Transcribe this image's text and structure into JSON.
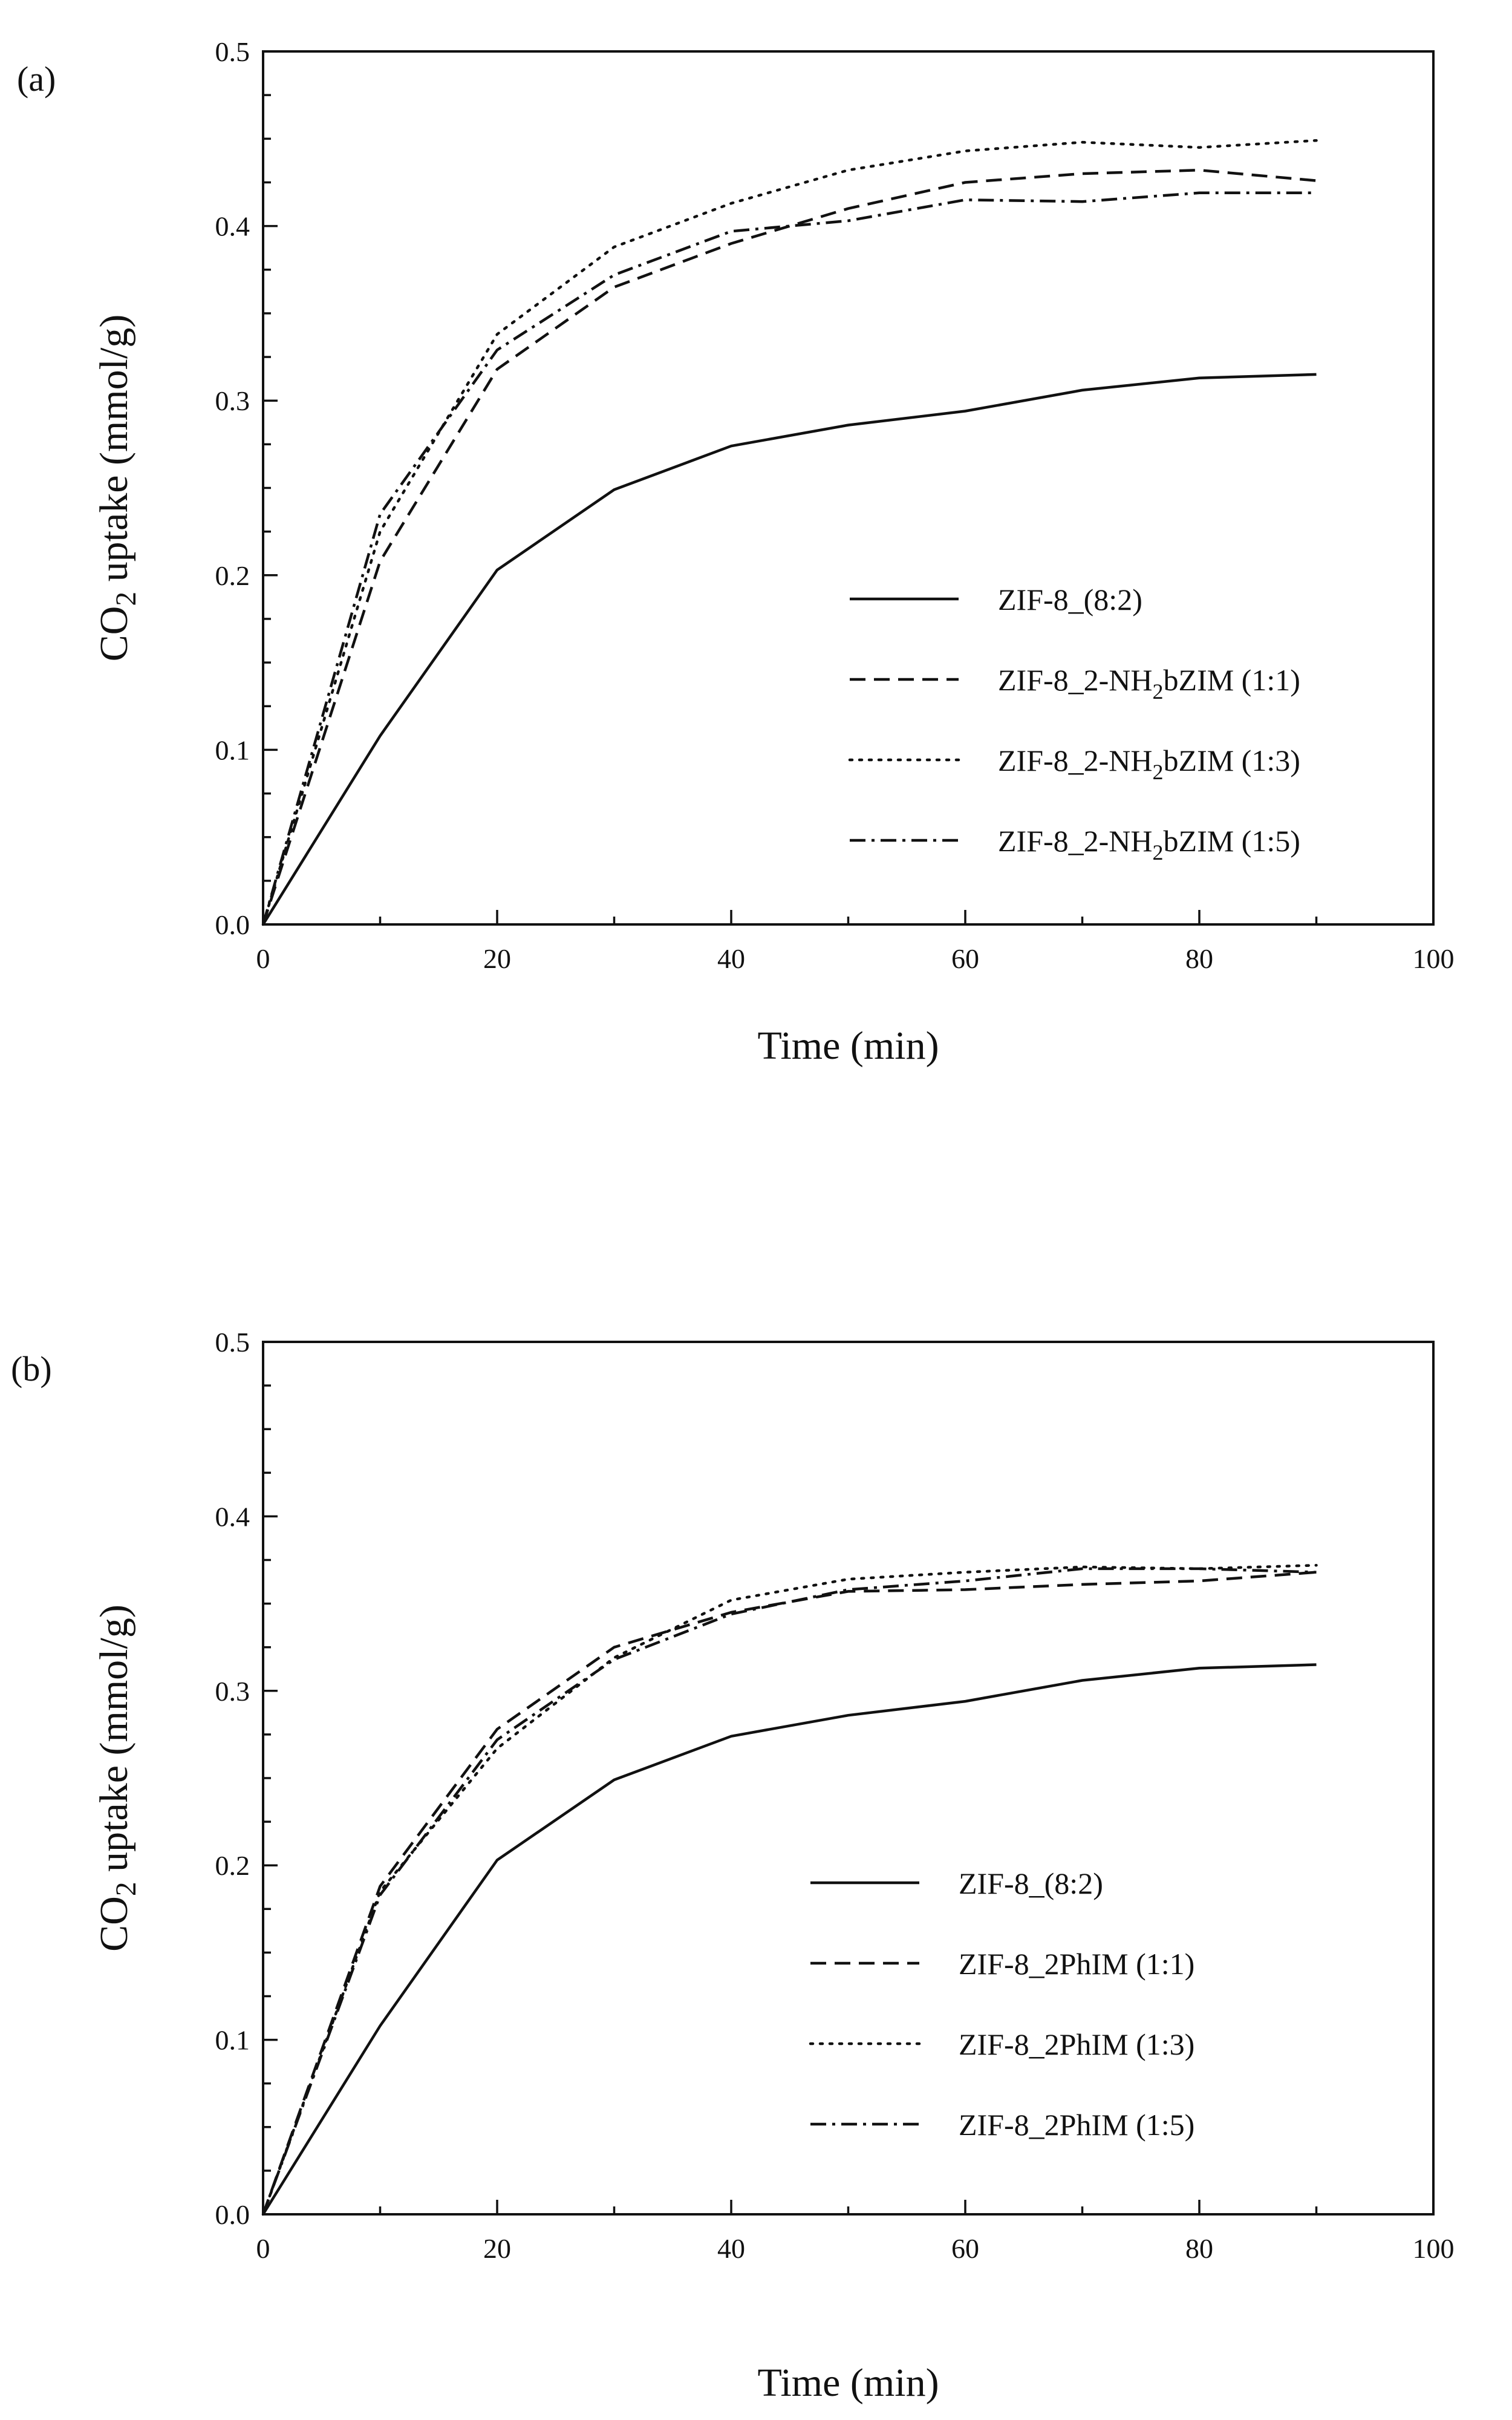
{
  "figure_domain": "chart",
  "chart_data": [
    {
      "panel_label": "(a)",
      "type": "line",
      "title": "",
      "xlabel": "Time (min)",
      "ylabel": {
        "prefix": "CO",
        "sub": "2",
        "suffix": " uptake (mmol/g)"
      },
      "xlim": [
        0,
        100
      ],
      "ylim": [
        0,
        0.5
      ],
      "xticks": [
        "0",
        "20",
        "40",
        "60",
        "80",
        "100"
      ],
      "yticks": [
        "0.0",
        "0.1",
        "0.2",
        "0.3",
        "0.4",
        "0.5"
      ],
      "grid": false,
      "legend_position": "lower-right",
      "series": [
        {
          "name": {
            "prefix": "ZIF-8_(8:2)",
            "sub": "",
            "suffix": ""
          },
          "style": "solid",
          "x": [
            0,
            10,
            20,
            30,
            40,
            50,
            60,
            70,
            80,
            90
          ],
          "y": [
            0.0,
            0.108,
            0.203,
            0.249,
            0.274,
            0.286,
            0.294,
            0.306,
            0.313,
            0.315
          ]
        },
        {
          "name": {
            "prefix": "ZIF-8_2-NH",
            "sub": "2",
            "suffix": "bZIM (1:1)"
          },
          "style": "dashed",
          "x": [
            0,
            10,
            20,
            30,
            40,
            50,
            60,
            70,
            80,
            90
          ],
          "y": [
            0.0,
            0.208,
            0.318,
            0.365,
            0.39,
            0.41,
            0.425,
            0.43,
            0.432,
            0.426
          ]
        },
        {
          "name": {
            "prefix": "ZIF-8_2-NH",
            "sub": "2",
            "suffix": "bZIM (1:3)"
          },
          "style": "dotted",
          "x": [
            0,
            10,
            20,
            30,
            40,
            50,
            60,
            70,
            80,
            90
          ],
          "y": [
            0.0,
            0.225,
            0.338,
            0.388,
            0.413,
            0.432,
            0.443,
            0.448,
            0.445,
            0.449
          ]
        },
        {
          "name": {
            "prefix": "ZIF-8_2-NH",
            "sub": "2",
            "suffix": "bZIM (1:5)"
          },
          "style": "dashdot",
          "x": [
            0,
            10,
            20,
            30,
            40,
            50,
            60,
            70,
            80,
            90
          ],
          "y": [
            0.0,
            0.235,
            0.329,
            0.372,
            0.397,
            0.403,
            0.415,
            0.414,
            0.419,
            0.419
          ]
        }
      ]
    },
    {
      "panel_label": "(b)",
      "type": "line",
      "title": "",
      "xlabel": "Time (min)",
      "ylabel": {
        "prefix": "CO",
        "sub": "2",
        "suffix": " uptake (mmol/g)"
      },
      "xlim": [
        0,
        100
      ],
      "ylim": [
        0,
        0.5
      ],
      "xticks": [
        "0",
        "20",
        "40",
        "60",
        "80",
        "100"
      ],
      "yticks": [
        "0.0",
        "0.1",
        "0.2",
        "0.3",
        "0.4",
        "0.5"
      ],
      "grid": false,
      "legend_position": "lower-right",
      "series": [
        {
          "name": {
            "prefix": "ZIF-8_(8:2)",
            "sub": "",
            "suffix": ""
          },
          "style": "solid",
          "x": [
            0,
            10,
            20,
            30,
            40,
            50,
            60,
            70,
            80,
            90
          ],
          "y": [
            0.0,
            0.108,
            0.203,
            0.249,
            0.274,
            0.286,
            0.294,
            0.306,
            0.313,
            0.315
          ]
        },
        {
          "name": {
            "prefix": "ZIF-8_2PhIM (1:1)",
            "sub": "",
            "suffix": ""
          },
          "style": "dashed",
          "x": [
            0,
            10,
            20,
            30,
            40,
            50,
            60,
            70,
            80,
            90
          ],
          "y": [
            0.0,
            0.188,
            0.278,
            0.325,
            0.345,
            0.357,
            0.358,
            0.361,
            0.363,
            0.368
          ]
        },
        {
          "name": {
            "prefix": "ZIF-8_2PhIM (1:3)",
            "sub": "",
            "suffix": ""
          },
          "style": "dotted",
          "x": [
            0,
            10,
            20,
            30,
            40,
            50,
            60,
            70,
            80,
            90
          ],
          "y": [
            0.0,
            0.185,
            0.267,
            0.319,
            0.352,
            0.364,
            0.368,
            0.371,
            0.37,
            0.372
          ]
        },
        {
          "name": {
            "prefix": "ZIF-8_2PhIM (1:5)",
            "sub": "",
            "suffix": ""
          },
          "style": "dashdot",
          "x": [
            0,
            10,
            20,
            30,
            40,
            50,
            60,
            70,
            80,
            90
          ],
          "y": [
            0.0,
            0.183,
            0.272,
            0.318,
            0.344,
            0.358,
            0.363,
            0.37,
            0.37,
            0.368
          ]
        }
      ]
    }
  ]
}
